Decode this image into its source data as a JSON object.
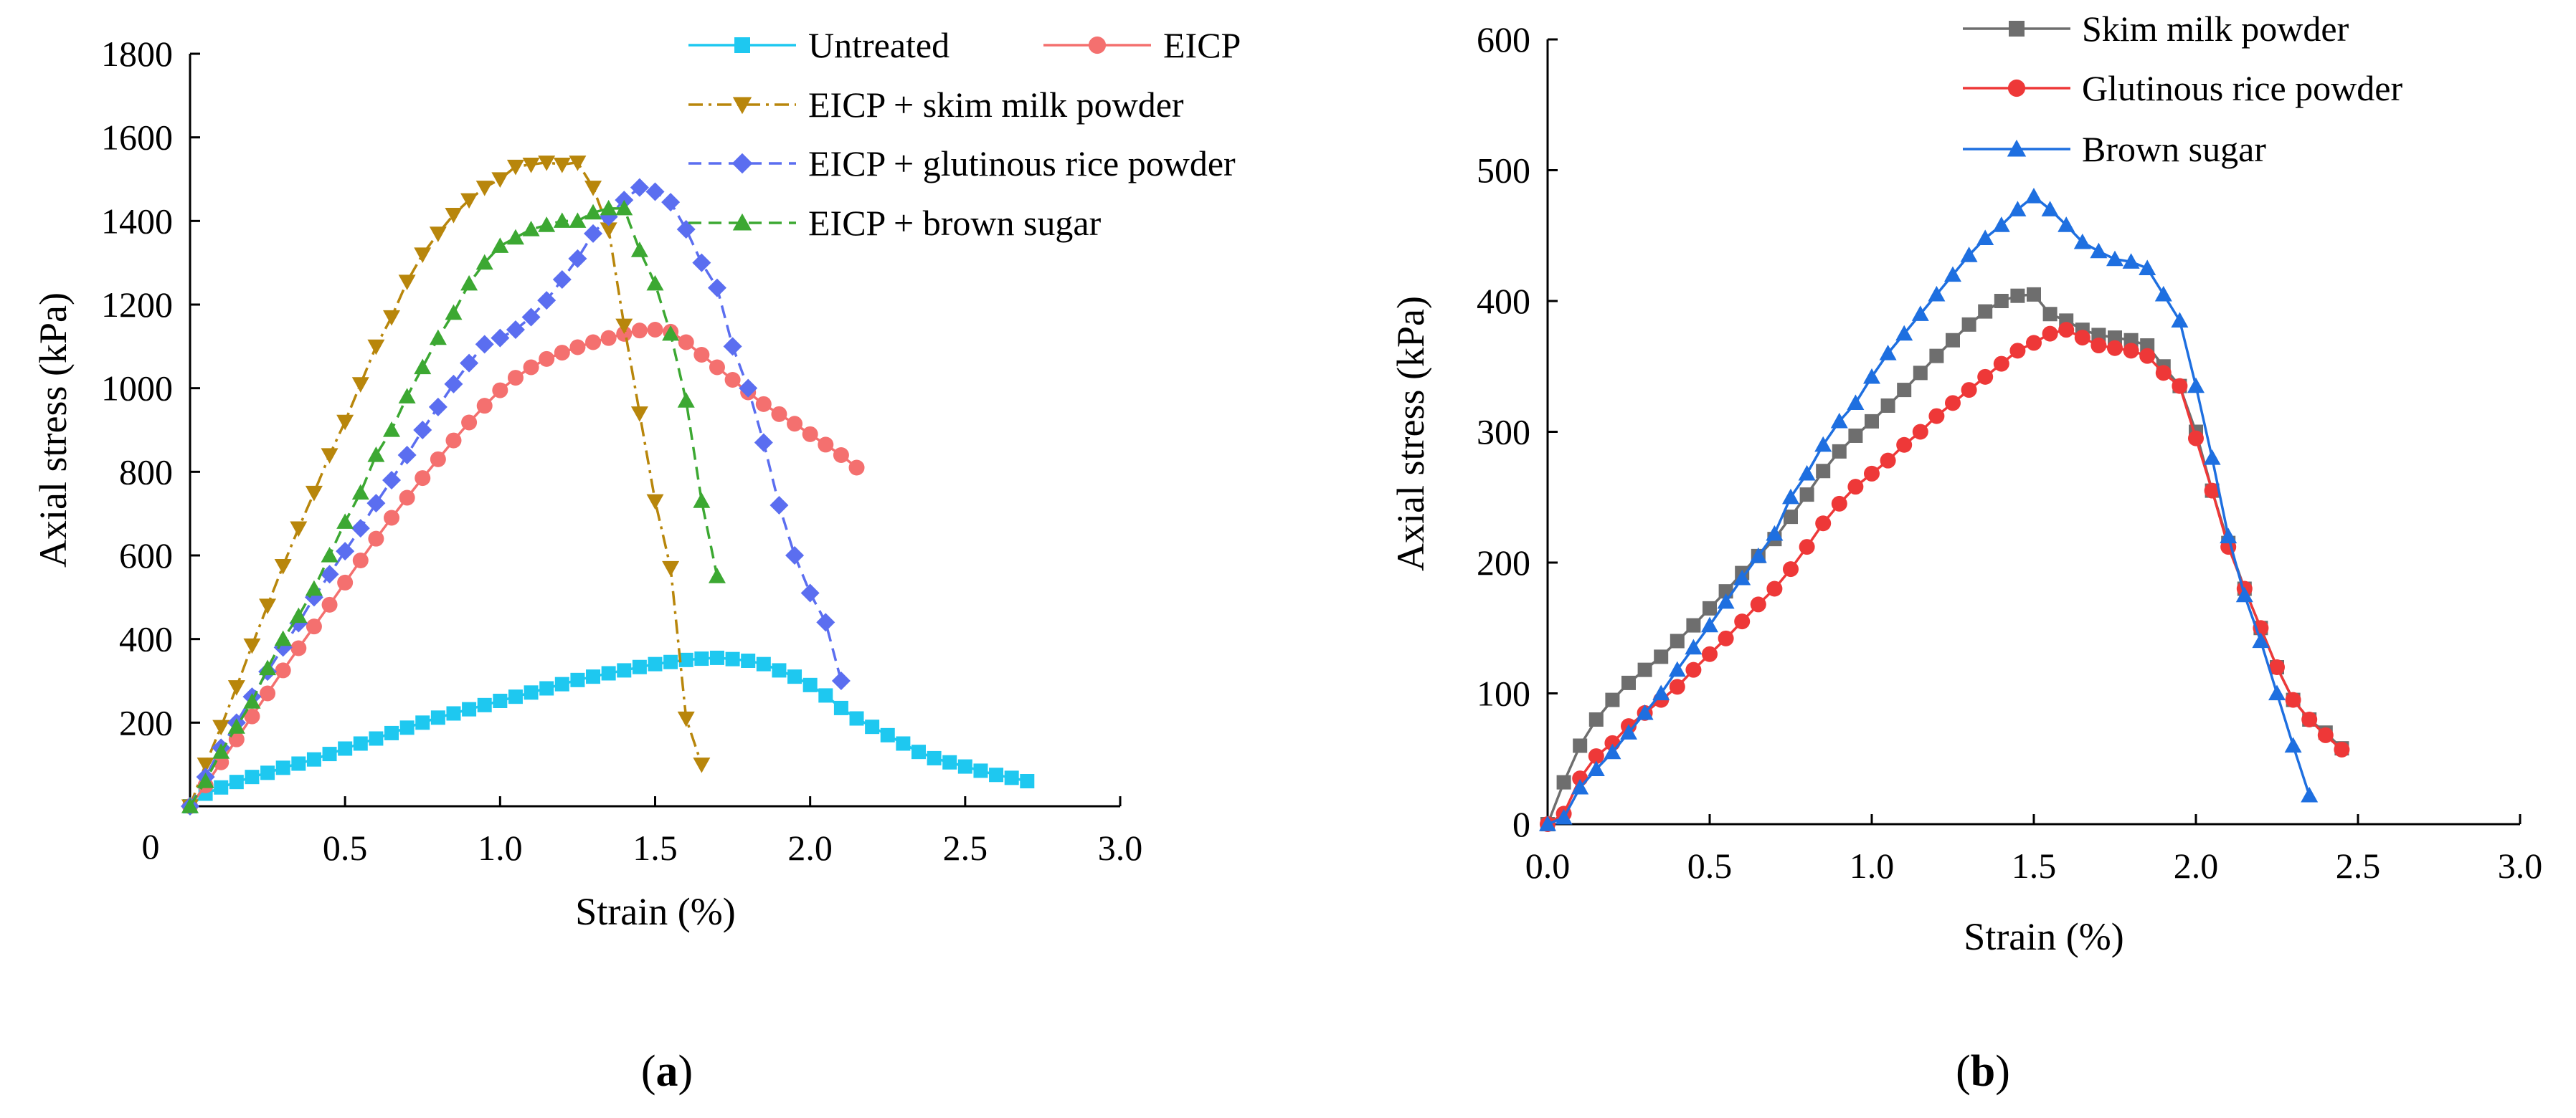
{
  "chart_data": [
    {
      "type": "line",
      "panel_label": "(a)",
      "panel_letter": "a",
      "title": "",
      "xlabel": "Strain (%)",
      "ylabel": "Axial stress (kPa)",
      "xlim": [
        0,
        3.0
      ],
      "ylim": [
        0,
        1800
      ],
      "xticks": [
        0.5,
        1.0,
        1.5,
        2.0,
        2.5,
        3.0
      ],
      "xtick_labels": [
        "0.5",
        "1.0",
        "1.5",
        "2.0",
        "2.5",
        "3.0"
      ],
      "yticks": [
        200,
        400,
        600,
        800,
        1000,
        1200,
        1400,
        1600,
        1800
      ],
      "ytick_labels": [
        "200",
        "400",
        "600",
        "800",
        "1000",
        "1200",
        "1400",
        "1600",
        "1800"
      ],
      "origin_label": "0",
      "grid": false,
      "legend_position": "top-right",
      "legend_layout": "two-column-first-row",
      "series": [
        {
          "name": "Untreated",
          "color": "#1EC8F0",
          "marker": "square",
          "dash": "solid",
          "x": [
            0.0,
            0.05,
            0.1,
            0.15,
            0.2,
            0.25,
            0.3,
            0.35,
            0.4,
            0.45,
            0.5,
            0.55,
            0.6,
            0.65,
            0.7,
            0.75,
            0.8,
            0.85,
            0.9,
            0.95,
            1.0,
            1.05,
            1.1,
            1.15,
            1.2,
            1.25,
            1.3,
            1.35,
            1.4,
            1.45,
            1.5,
            1.55,
            1.6,
            1.65,
            1.7,
            1.75,
            1.8,
            1.85,
            1.9,
            1.95,
            2.0,
            2.05,
            2.1,
            2.15,
            2.2,
            2.25,
            2.3,
            2.35,
            2.4,
            2.45,
            2.5,
            2.55,
            2.6,
            2.65,
            2.7
          ],
          "y": [
            0,
            30,
            45,
            58,
            70,
            80,
            92,
            102,
            112,
            125,
            138,
            150,
            162,
            175,
            188,
            200,
            212,
            222,
            232,
            242,
            252,
            262,
            272,
            282,
            292,
            302,
            310,
            318,
            325,
            333,
            340,
            345,
            350,
            353,
            355,
            352,
            348,
            340,
            325,
            310,
            290,
            265,
            235,
            210,
            190,
            170,
            150,
            130,
            115,
            105,
            95,
            85,
            75,
            68,
            60
          ]
        },
        {
          "name": "EICP",
          "color": "#F4706F",
          "marker": "circle",
          "dash": "solid",
          "x": [
            0.0,
            0.05,
            0.1,
            0.15,
            0.2,
            0.25,
            0.3,
            0.35,
            0.4,
            0.45,
            0.5,
            0.55,
            0.6,
            0.65,
            0.7,
            0.75,
            0.8,
            0.85,
            0.9,
            0.95,
            1.0,
            1.05,
            1.1,
            1.15,
            1.2,
            1.25,
            1.3,
            1.35,
            1.4,
            1.45,
            1.5,
            1.55,
            1.6,
            1.65,
            1.7,
            1.75,
            1.8,
            1.85,
            1.9,
            1.95,
            2.0,
            2.05,
            2.1,
            2.15
          ],
          "y": [
            0,
            50,
            105,
            160,
            215,
            270,
            325,
            378,
            430,
            482,
            535,
            588,
            640,
            690,
            738,
            785,
            830,
            875,
            918,
            958,
            995,
            1025,
            1050,
            1070,
            1085,
            1098,
            1110,
            1120,
            1130,
            1138,
            1140,
            1135,
            1110,
            1080,
            1050,
            1020,
            990,
            962,
            938,
            915,
            890,
            865,
            840,
            810
          ]
        },
        {
          "name": "EICP + skim milk powder",
          "color": "#B8860B",
          "marker": "triangle-down",
          "dash": "dashdot",
          "x": [
            0.0,
            0.05,
            0.1,
            0.15,
            0.2,
            0.25,
            0.3,
            0.35,
            0.4,
            0.45,
            0.5,
            0.55,
            0.6,
            0.65,
            0.7,
            0.75,
            0.8,
            0.85,
            0.9,
            0.95,
            1.0,
            1.05,
            1.1,
            1.15,
            1.2,
            1.25,
            1.3,
            1.35,
            1.4,
            1.45,
            1.5,
            1.55,
            1.6,
            1.65
          ],
          "y": [
            0,
            100,
            190,
            285,
            385,
            480,
            575,
            665,
            750,
            840,
            920,
            1010,
            1100,
            1170,
            1255,
            1320,
            1370,
            1415,
            1450,
            1480,
            1500,
            1530,
            1535,
            1540,
            1535,
            1540,
            1480,
            1380,
            1150,
            940,
            730,
            570,
            210,
            100
          ]
        },
        {
          "name": "EICP + glutinous rice powder",
          "color": "#5B6EF0",
          "marker": "diamond",
          "dash": "dash",
          "x": [
            0.0,
            0.05,
            0.1,
            0.15,
            0.2,
            0.25,
            0.3,
            0.35,
            0.4,
            0.45,
            0.5,
            0.55,
            0.6,
            0.65,
            0.7,
            0.75,
            0.8,
            0.85,
            0.9,
            0.95,
            1.0,
            1.05,
            1.1,
            1.15,
            1.2,
            1.25,
            1.3,
            1.35,
            1.4,
            1.45,
            1.5,
            1.55,
            1.6,
            1.65,
            1.7,
            1.75,
            1.8,
            1.85,
            1.9,
            1.95,
            2.0,
            2.05,
            2.1
          ],
          "y": [
            0,
            70,
            140,
            200,
            262,
            322,
            380,
            438,
            500,
            555,
            610,
            665,
            725,
            780,
            840,
            900,
            955,
            1010,
            1060,
            1105,
            1120,
            1140,
            1170,
            1210,
            1260,
            1310,
            1370,
            1410,
            1450,
            1480,
            1470,
            1445,
            1380,
            1300,
            1240,
            1100,
            1000,
            870,
            720,
            600,
            510,
            440,
            300
          ]
        },
        {
          "name": "EICP + brown sugar",
          "color": "#3CA832",
          "marker": "triangle-up",
          "dash": "dash",
          "x": [
            0.0,
            0.05,
            0.1,
            0.15,
            0.2,
            0.25,
            0.3,
            0.35,
            0.4,
            0.45,
            0.5,
            0.55,
            0.6,
            0.65,
            0.7,
            0.75,
            0.8,
            0.85,
            0.9,
            0.95,
            1.0,
            1.05,
            1.1,
            1.15,
            1.2,
            1.25,
            1.3,
            1.35,
            1.4,
            1.45,
            1.5,
            1.55,
            1.6,
            1.65,
            1.7
          ],
          "y": [
            0,
            60,
            130,
            190,
            250,
            330,
            400,
            455,
            520,
            600,
            680,
            750,
            840,
            900,
            980,
            1050,
            1120,
            1180,
            1250,
            1300,
            1340,
            1360,
            1380,
            1390,
            1400,
            1400,
            1420,
            1430,
            1430,
            1330,
            1250,
            1130,
            970,
            730,
            550
          ]
        }
      ]
    },
    {
      "type": "line",
      "panel_label": "(b)",
      "panel_letter": "b",
      "title": "",
      "xlabel": "Strain (%)",
      "ylabel": "Axial stress (kPa)",
      "xlim": [
        0,
        3.0
      ],
      "ylim": [
        0,
        600
      ],
      "xticks": [
        0.0,
        0.5,
        1.0,
        1.5,
        2.0,
        2.5,
        3.0
      ],
      "xtick_labels": [
        "0.0",
        "0.5",
        "1.0",
        "1.5",
        "2.0",
        "2.5",
        "3.0"
      ],
      "yticks": [
        0,
        100,
        200,
        300,
        400,
        500,
        600
      ],
      "ytick_labels": [
        "0",
        "100",
        "200",
        "300",
        "400",
        "500",
        "600"
      ],
      "grid": false,
      "legend_position": "top-center",
      "legend_layout": "one-column",
      "series": [
        {
          "name": "Skim milk powder",
          "color": "#6E6E6E",
          "marker": "square",
          "dash": "solid",
          "x": [
            0.0,
            0.05,
            0.1,
            0.15,
            0.2,
            0.25,
            0.3,
            0.35,
            0.4,
            0.45,
            0.5,
            0.55,
            0.6,
            0.65,
            0.7,
            0.75,
            0.8,
            0.85,
            0.9,
            0.95,
            1.0,
            1.05,
            1.1,
            1.15,
            1.2,
            1.25,
            1.3,
            1.35,
            1.4,
            1.45,
            1.5,
            1.55,
            1.6,
            1.65,
            1.7,
            1.75,
            1.8,
            1.85,
            1.9,
            1.95,
            2.0,
            2.05,
            2.1,
            2.15,
            2.2,
            2.25,
            2.3,
            2.35,
            2.4,
            2.45
          ],
          "y": [
            0,
            32,
            60,
            80,
            95,
            108,
            118,
            128,
            140,
            152,
            165,
            178,
            192,
            205,
            218,
            235,
            252,
            270,
            285,
            297,
            308,
            320,
            332,
            345,
            358,
            370,
            382,
            392,
            400,
            404,
            405,
            390,
            385,
            378,
            374,
            372,
            370,
            366,
            350,
            335,
            300,
            255,
            215,
            180,
            150,
            120,
            95,
            80,
            70,
            58
          ]
        },
        {
          "name": "Glutinous rice powder",
          "color": "#EE3838",
          "marker": "circle",
          "dash": "solid",
          "x": [
            0.0,
            0.05,
            0.1,
            0.15,
            0.2,
            0.25,
            0.3,
            0.35,
            0.4,
            0.45,
            0.5,
            0.55,
            0.6,
            0.65,
            0.7,
            0.75,
            0.8,
            0.85,
            0.9,
            0.95,
            1.0,
            1.05,
            1.1,
            1.15,
            1.2,
            1.25,
            1.3,
            1.35,
            1.4,
            1.45,
            1.5,
            1.55,
            1.6,
            1.65,
            1.7,
            1.75,
            1.8,
            1.85,
            1.9,
            1.95,
            2.0,
            2.05,
            2.1,
            2.15,
            2.2,
            2.25,
            2.3,
            2.35,
            2.4,
            2.45
          ],
          "y": [
            0,
            8,
            35,
            52,
            62,
            75,
            85,
            95,
            105,
            118,
            130,
            142,
            155,
            168,
            180,
            195,
            212,
            230,
            245,
            258,
            268,
            278,
            290,
            300,
            312,
            322,
            332,
            342,
            352,
            362,
            368,
            375,
            378,
            372,
            366,
            364,
            362,
            358,
            345,
            335,
            295,
            255,
            212,
            180,
            150,
            120,
            95,
            80,
            68,
            57
          ]
        },
        {
          "name": "Brown sugar",
          "color": "#1E6FE0",
          "marker": "triangle-up",
          "dash": "solid",
          "x": [
            0.0,
            0.05,
            0.1,
            0.15,
            0.2,
            0.25,
            0.3,
            0.35,
            0.4,
            0.45,
            0.5,
            0.55,
            0.6,
            0.65,
            0.7,
            0.75,
            0.8,
            0.85,
            0.9,
            0.95,
            1.0,
            1.05,
            1.1,
            1.15,
            1.2,
            1.25,
            1.3,
            1.35,
            1.4,
            1.45,
            1.5,
            1.55,
            1.6,
            1.65,
            1.7,
            1.75,
            1.8,
            1.85,
            1.9,
            1.95,
            2.0,
            2.05,
            2.1,
            2.15,
            2.2,
            2.25,
            2.3,
            2.35
          ],
          "y": [
            0,
            5,
            28,
            42,
            55,
            70,
            85,
            100,
            118,
            135,
            152,
            170,
            188,
            205,
            222,
            250,
            268,
            290,
            308,
            322,
            342,
            360,
            375,
            390,
            405,
            420,
            435,
            448,
            458,
            470,
            480,
            470,
            458,
            445,
            438,
            432,
            430,
            425,
            405,
            385,
            335,
            280,
            220,
            175,
            140,
            100,
            60,
            22
          ]
        }
      ]
    }
  ]
}
